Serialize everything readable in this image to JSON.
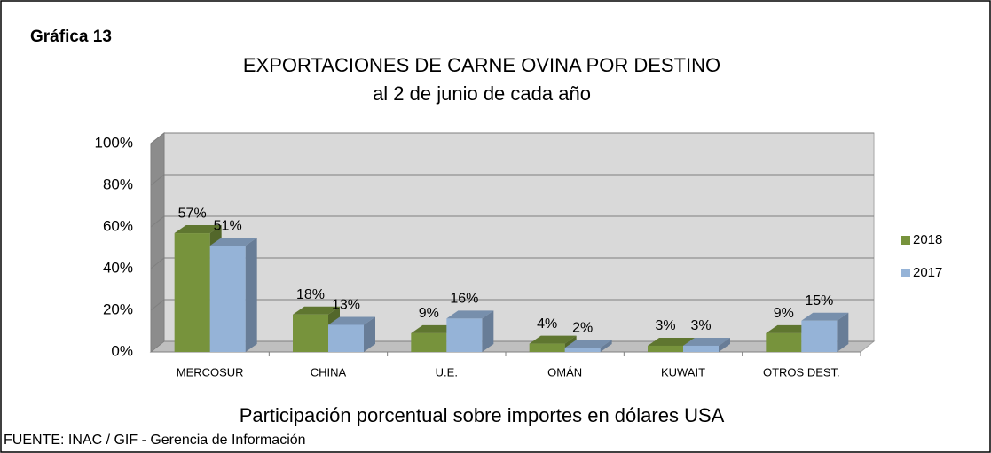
{
  "heading": "Gráfica 13",
  "source": "FUENTE: INAC / GIF - Gerencia de Información",
  "chart_data": {
    "type": "bar3d",
    "title": "EXPORTACIONES DE CARNE OVINA POR DESTINO",
    "subtitle": "al 2 de junio de cada año",
    "x_label": "Participación porcentual sobre importes en dólares USA",
    "categories": [
      "MERCOSUR",
      "CHINA",
      "U.E.",
      "OMÁN",
      "KUWAIT",
      "OTROS DEST."
    ],
    "series": [
      {
        "name": "2018",
        "color": "#77933c",
        "values": [
          57,
          18,
          9,
          4,
          3,
          9
        ],
        "value_labels": [
          "57%",
          "18%",
          "9%",
          "4%",
          "3%",
          "9%"
        ]
      },
      {
        "name": "2017",
        "color": "#95b3d7",
        "values": [
          51,
          13,
          16,
          2,
          3,
          15
        ],
        "value_labels": [
          "51%",
          "13%",
          "16%",
          "2%",
          "3%",
          "15%"
        ]
      }
    ],
    "ylim": [
      0,
      100
    ],
    "yticks": [
      {
        "value": 0,
        "label": "0%"
      },
      {
        "value": 20,
        "label": "20%"
      },
      {
        "value": 40,
        "label": "40%"
      },
      {
        "value": 60,
        "label": "60%"
      },
      {
        "value": 80,
        "label": "80%"
      },
      {
        "value": 100,
        "label": "100%"
      }
    ],
    "grid": true,
    "legend": "right"
  }
}
